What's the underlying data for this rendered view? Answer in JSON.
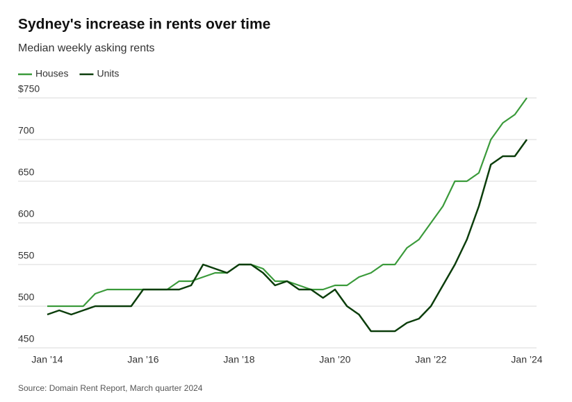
{
  "chart_data": {
    "type": "line",
    "title": "Sydney's increase in rents over time",
    "subtitle": "Median weekly asking rents",
    "source": "Source: Domain Rent Report, March quarter 2024",
    "categories": [
      "Jan ’14",
      null,
      null,
      null,
      null,
      null,
      null,
      null,
      "Jan ’16",
      null,
      null,
      null,
      null,
      null,
      null,
      null,
      "Jan ’18",
      null,
      null,
      null,
      null,
      null,
      null,
      null,
      "Jan ’20",
      null,
      null,
      null,
      null,
      null,
      null,
      null,
      "Jan ’22",
      null,
      null,
      null,
      null,
      null,
      null,
      null,
      "Jan ’24"
    ],
    "series": [
      {
        "name": "Houses",
        "color": "#3a9a3a",
        "values": [
          500,
          500,
          500,
          500,
          515,
          520,
          520,
          520,
          520,
          520,
          520,
          530,
          530,
          535,
          540,
          540,
          550,
          550,
          545,
          530,
          530,
          525,
          520,
          520,
          525,
          525,
          535,
          540,
          550,
          550,
          570,
          580,
          600,
          620,
          650,
          650,
          660,
          700,
          720,
          730,
          750
        ]
      },
      {
        "name": "Units",
        "color": "#0b3d0b",
        "values": [
          490,
          495,
          490,
          495,
          500,
          500,
          500,
          500,
          520,
          520,
          520,
          520,
          525,
          550,
          545,
          540,
          550,
          550,
          540,
          525,
          530,
          520,
          520,
          510,
          520,
          500,
          490,
          470,
          470,
          470,
          480,
          485,
          500,
          525,
          550,
          580,
          620,
          670,
          680,
          680,
          700
        ]
      }
    ],
    "ylim": [
      450,
      750
    ],
    "yticks": [
      450,
      500,
      550,
      600,
      650,
      700,
      {
        "value": 750,
        "label": "$750"
      }
    ],
    "grid": true,
    "legend": "top-left"
  }
}
